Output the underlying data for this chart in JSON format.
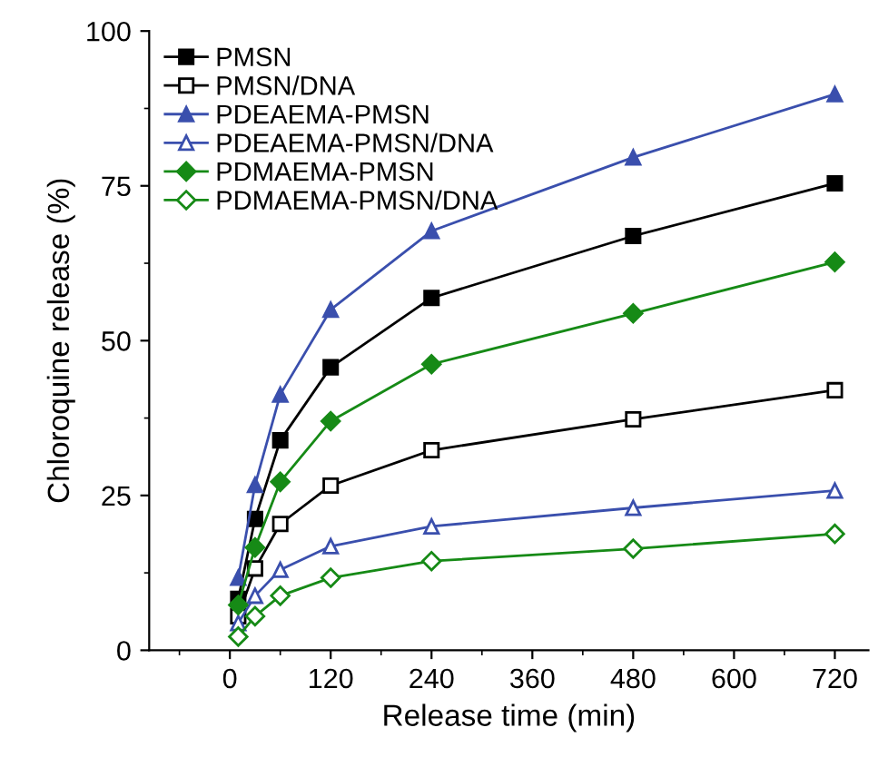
{
  "chart_data": {
    "type": "line",
    "xlabel": "Release time (min)",
    "ylabel": "Chloroquine release (%)",
    "x": [
      10,
      30,
      60,
      120,
      240,
      480,
      720
    ],
    "xlim": [
      -96,
      760
    ],
    "xticks": [
      0,
      120,
      240,
      360,
      480,
      600,
      720
    ],
    "ylim": [
      0,
      100
    ],
    "yticks": [
      0,
      25,
      50,
      75,
      100
    ],
    "grid": false,
    "legend": "top left",
    "line_style": "solid",
    "series": [
      {
        "name": "PMSN",
        "color": "#000000",
        "marker": "square",
        "values": [
          8.3,
          21.2,
          33.9,
          45.7,
          56.9,
          66.9,
          75.4
        ]
      },
      {
        "name": "PMSN/DNA",
        "color": "#000000",
        "marker": "square",
        "values": [
          5.5,
          13.2,
          20.4,
          26.6,
          32.3,
          37.3,
          42.0
        ]
      },
      {
        "name": "PDEAEMA-PMSN",
        "color": "#3a4fad",
        "marker": "triangle",
        "values": [
          11.7,
          26.7,
          41.3,
          55.0,
          67.7,
          79.6,
          89.8
        ]
      },
      {
        "name": "PDEAEMA-PMSN/DNA",
        "color": "#3a4fad",
        "marker": "triangle",
        "values": [
          4.4,
          8.8,
          13.0,
          16.8,
          20.0,
          23.0,
          25.8
        ]
      },
      {
        "name": "PDMAEMA-PMSN",
        "color": "#168a16",
        "marker": "diamond",
        "values": [
          7.3,
          16.6,
          27.2,
          37.0,
          46.2,
          54.4,
          62.7
        ]
      },
      {
        "name": "PDMAEMA-PMSN/DNA",
        "color": "#168a16",
        "marker": "diamond",
        "values": [
          2.2,
          5.5,
          8.8,
          11.7,
          14.4,
          16.4,
          18.8
        ]
      }
    ]
  }
}
